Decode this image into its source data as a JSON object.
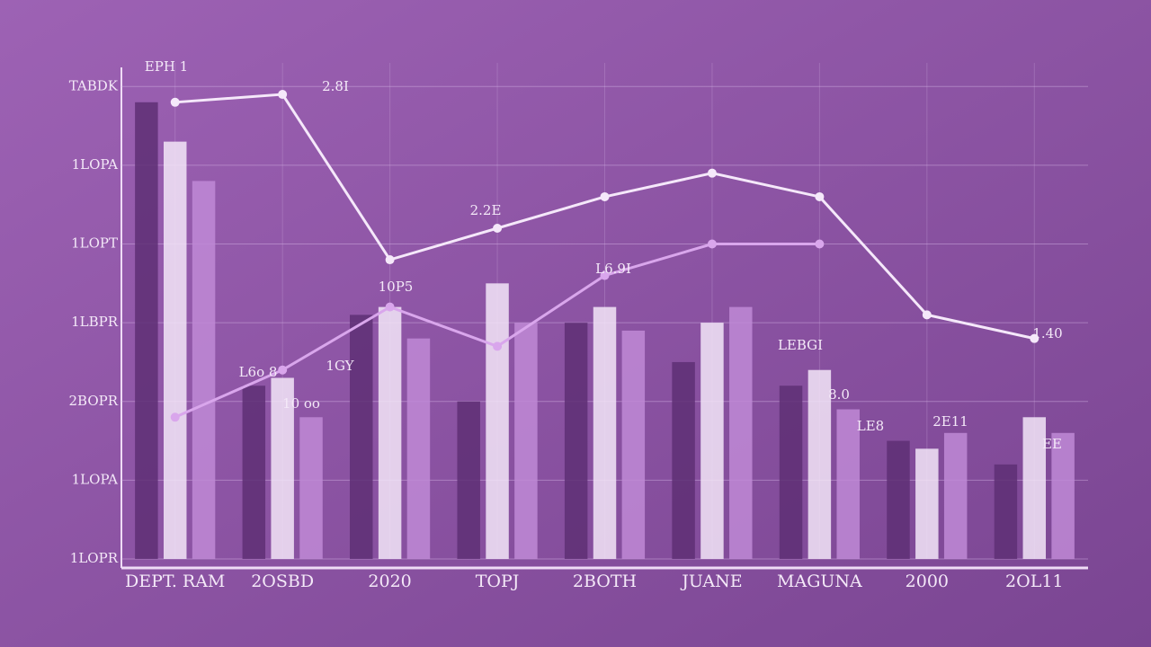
{
  "chart_data": {
    "type": "bar",
    "categories": [
      "DEPT. RAM",
      "2OSBD",
      "2020",
      "TOPJ",
      "2BOTH",
      "JUANE",
      "MAGUNA",
      "2000",
      "2OL11"
    ],
    "ylim": [
      0,
      6.3
    ],
    "yticks": [
      {
        "value": 0,
        "label": "1LOPR"
      },
      {
        "value": 1,
        "label": "1LOPA"
      },
      {
        "value": 2,
        "label": "2BOPR"
      },
      {
        "value": 3,
        "label": "1LBPR"
      },
      {
        "value": 4,
        "label": "1LOPT"
      },
      {
        "value": 5,
        "label": "1LOPA"
      },
      {
        "value": 6,
        "label": "TABDK"
      }
    ],
    "grid": true,
    "series": [
      {
        "type": "bar",
        "color": "#5e2f74",
        "values": [
          5.8,
          2.2,
          3.1,
          2.0,
          3.0,
          2.5,
          2.2,
          1.5,
          1.2
        ]
      },
      {
        "type": "bar",
        "color": "#f3e6f8",
        "values": [
          5.3,
          2.3,
          3.2,
          3.5,
          3.2,
          3.0,
          2.4,
          1.4,
          1.8
        ]
      },
      {
        "type": "bar",
        "color": "#c08ad6",
        "values": [
          4.8,
          1.8,
          2.8,
          3.0,
          2.9,
          3.2,
          1.9,
          1.6,
          1.6
        ]
      },
      {
        "type": "line",
        "color": "#f5e8fa",
        "values": [
          5.8,
          5.9,
          3.8,
          4.2,
          4.6,
          4.9,
          4.6,
          3.1,
          2.8
        ]
      },
      {
        "type": "line",
        "color": "#d9a6ec",
        "values": [
          1.8,
          2.4,
          3.2,
          2.7,
          3.6,
          4.0,
          4.0,
          null,
          null
        ]
      }
    ],
    "annotations": [
      "EPH 1",
      "2.8I",
      "2.2E",
      "10P5",
      "L6.9I",
      "LEBGI",
      "1.40",
      "L6o 8",
      "1GY",
      "10 oo",
      "8.0",
      "LE8",
      "2E11",
      "EE"
    ]
  }
}
